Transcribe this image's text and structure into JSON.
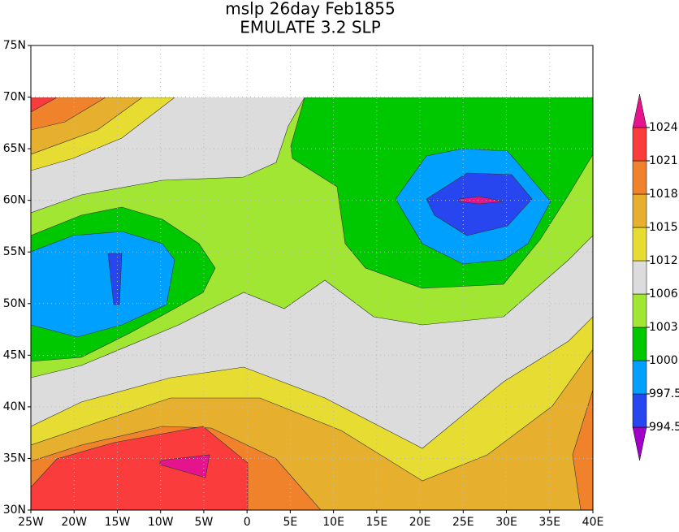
{
  "header": {
    "title": "mslp 26day Feb1855",
    "subtitle": "EMULATE 3.2 SLP"
  },
  "map": {
    "xlim": [
      -25,
      40
    ],
    "ylim": [
      30,
      75
    ],
    "xticks": [
      {
        "value": -25,
        "label": "25W"
      },
      {
        "value": -20,
        "label": "20W"
      },
      {
        "value": -15,
        "label": "15W"
      },
      {
        "value": -10,
        "label": "10W"
      },
      {
        "value": -5,
        "label": "5W"
      },
      0,
      {
        "value": 5,
        "label": "5E"
      },
      {
        "value": 10,
        "label": "10E"
      },
      {
        "value": 15,
        "label": "15E"
      },
      {
        "value": 20,
        "label": "20E"
      },
      {
        "value": 25,
        "label": "25E"
      },
      {
        "value": 30,
        "label": "30E"
      },
      {
        "value": 35,
        "label": "35E"
      },
      {
        "value": 40,
        "label": "40E"
      }
    ],
    "yticks": [
      {
        "value": 30,
        "label": "30N"
      },
      {
        "value": 35,
        "label": "35N"
      },
      {
        "value": 40,
        "label": "40N"
      },
      {
        "value": 45,
        "label": "45N"
      },
      {
        "value": 50,
        "label": "50N"
      },
      {
        "value": 55,
        "label": "55N"
      },
      {
        "value": 60,
        "label": "60N"
      },
      {
        "value": 65,
        "label": "65N"
      },
      {
        "value": 70,
        "label": "70N"
      },
      {
        "value": 75,
        "label": "75N"
      }
    ],
    "grid": true
  },
  "colorbar": {
    "levels": [
      994.5,
      997.5,
      1000,
      1003,
      1006,
      1012,
      1015,
      1018,
      1021,
      1024
    ],
    "colors": [
      "#a000c8",
      "#2846f0",
      "#00a0ff",
      "#00c800",
      "#a0e632",
      "#dcdcdc",
      "#e6dc32",
      "#e6af2d",
      "#f0822b",
      "#fa3c3c",
      "#e6148c"
    ]
  }
}
